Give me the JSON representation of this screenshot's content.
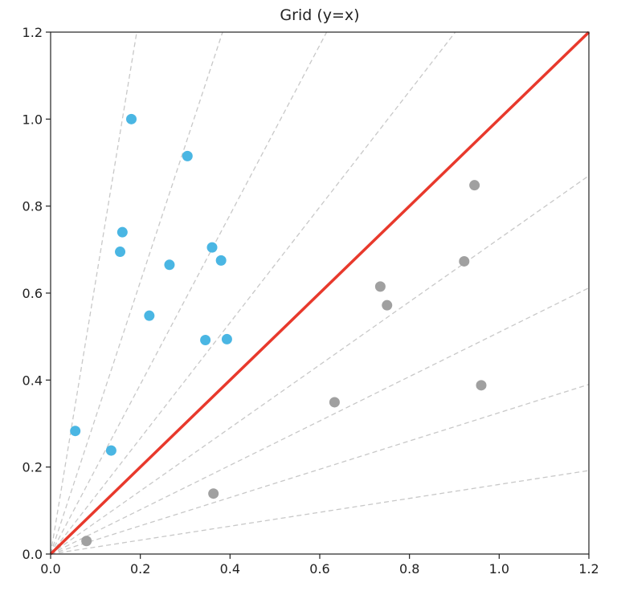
{
  "chart_data": {
    "type": "scatter",
    "title": "Grid (y=x)",
    "xlabel": "",
    "ylabel": "",
    "xlim": [
      0.0,
      1.2
    ],
    "ylim": [
      0.0,
      1.2
    ],
    "xticks": [
      "0.0",
      "0.2",
      "0.4",
      "0.6",
      "0.8",
      "1.0",
      "1.2"
    ],
    "yticks": [
      "0.0",
      "0.2",
      "0.4",
      "0.6",
      "0.8",
      "1.0",
      "1.2"
    ],
    "identity_line": {
      "from": [
        0.0,
        0.0
      ],
      "to": [
        1.2,
        1.2
      ],
      "color": "#e8392c"
    },
    "guide_slopes": [
      6.25,
      3.13,
      1.95,
      1.33,
      0.725,
      0.51,
      0.325,
      0.16
    ],
    "guide_color": "#c8c8c8",
    "grid": false,
    "series": [
      {
        "color": "#4ab6e3",
        "points": [
          [
            0.18,
            1.0
          ],
          [
            0.305,
            0.915
          ],
          [
            0.16,
            0.74
          ],
          [
            0.155,
            0.695
          ],
          [
            0.265,
            0.665
          ],
          [
            0.36,
            0.705
          ],
          [
            0.38,
            0.675
          ],
          [
            0.22,
            0.548
          ],
          [
            0.345,
            0.492
          ],
          [
            0.393,
            0.494
          ],
          [
            0.055,
            0.283
          ],
          [
            0.135,
            0.238
          ]
        ]
      },
      {
        "color": "#a0a0a0",
        "points": [
          [
            0.945,
            0.848
          ],
          [
            0.922,
            0.673
          ],
          [
            0.735,
            0.615
          ],
          [
            0.75,
            0.572
          ],
          [
            0.96,
            0.388
          ],
          [
            0.633,
            0.349
          ],
          [
            0.363,
            0.139
          ],
          [
            0.08,
            0.03
          ]
        ]
      }
    ]
  }
}
